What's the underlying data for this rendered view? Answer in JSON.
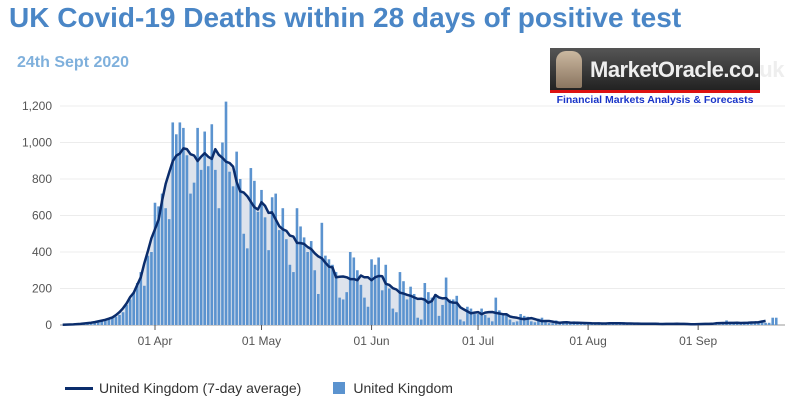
{
  "title": "UK Covid-19 Deaths within 28 days of positive test",
  "subtitle": "24th Sept 2020",
  "logo": {
    "name": "MarketOracle.co.uk",
    "tagline": "Financial Markets Analysis & Forecasts"
  },
  "colors": {
    "bars": "#5b93cf",
    "line": "#0b2d6c",
    "area": "#dde3ec",
    "title": "#4a86c6"
  },
  "chart_data": {
    "type": "bar",
    "title": "",
    "xlabel": "",
    "ylabel": "",
    "start_date": "2020-03-06",
    "ylim": [
      0,
      1200
    ],
    "yticks": [
      "0",
      "200",
      "400",
      "600",
      "800",
      "1,000",
      "1,200"
    ],
    "xticks": [
      {
        "date": "2020-04-01",
        "label": "01 Apr"
      },
      {
        "date": "2020-05-01",
        "label": "01 May"
      },
      {
        "date": "2020-06-01",
        "label": "01 Jun"
      },
      {
        "date": "2020-07-01",
        "label": "01 Jul"
      },
      {
        "date": "2020-08-01",
        "label": "01 Aug"
      },
      {
        "date": "2020-09-01",
        "label": "01 Sep"
      }
    ],
    "grid": true,
    "legend_placement": "bottom-left",
    "series": [
      {
        "name": "United Kingdom (7-day average)",
        "type": "line",
        "derived": "7-day rolling average of daily values",
        "end_date": "2020-09-20"
      },
      {
        "name": "United Kingdom",
        "type": "bar",
        "values": [
          1,
          1,
          2,
          3,
          4,
          5,
          8,
          10,
          12,
          15,
          18,
          22,
          28,
          33,
          40,
          45,
          55,
          70,
          110,
          140,
          180,
          230,
          290,
          215,
          380,
          400,
          670,
          650,
          720,
          640,
          580,
          1110,
          1045,
          1110,
          1080,
          930,
          720,
          780,
          1080,
          850,
          1060,
          870,
          1100,
          850,
          640,
          1000,
          1224,
          840,
          760,
          950,
          800,
          500,
          420,
          860,
          790,
          620,
          740,
          590,
          410,
          700,
          720,
          520,
          640,
          470,
          330,
          290,
          640,
          540,
          480,
          400,
          460,
          300,
          170,
          560,
          380,
          360,
          330,
          290,
          150,
          140,
          180,
          400,
          370,
          300,
          220,
          150,
          100,
          360,
          330,
          370,
          190,
          330,
          200,
          90,
          70,
          290,
          240,
          140,
          210,
          170,
          40,
          30,
          230,
          180,
          150,
          170,
          50,
          110,
          260,
          140,
          140,
          160,
          30,
          20,
          100,
          90,
          60,
          60,
          90,
          55,
          40,
          20,
          150,
          80,
          65,
          55,
          30,
          15,
          20,
          60,
          50,
          45,
          20,
          15,
          35,
          40,
          20,
          10,
          10,
          25,
          15,
          12,
          10,
          8,
          20,
          15,
          12,
          10,
          10,
          5,
          5,
          15,
          10,
          8,
          10,
          5,
          5,
          12,
          15,
          10,
          8,
          5,
          4,
          3,
          10,
          12,
          8,
          6,
          5,
          3,
          4,
          5,
          8,
          10,
          8,
          6,
          4,
          3,
          3,
          3,
          5,
          8,
          10,
          8,
          5,
          3,
          8,
          25,
          15,
          12,
          10,
          6,
          6,
          10,
          18,
          20,
          16,
          18,
          12,
          12,
          40,
          40
        ]
      }
    ]
  }
}
